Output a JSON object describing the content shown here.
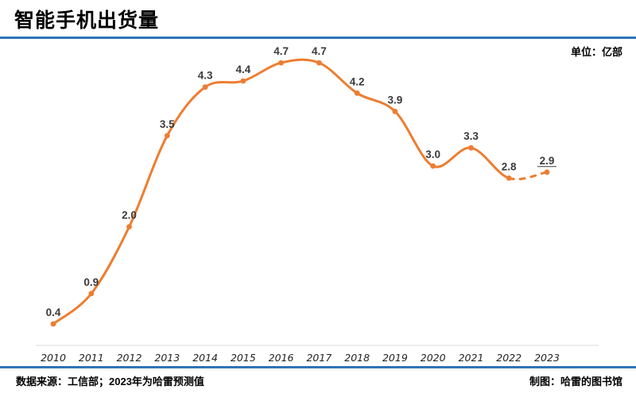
{
  "header": {
    "title": "智能手机出货量",
    "unit_label": "单位：亿部"
  },
  "footer": {
    "source": "数据来源：工信部；2023年为哈雷预测值",
    "credit": "制图：哈雷的图书馆"
  },
  "colors": {
    "line": "#ED7D31",
    "divider": "#2E75B6",
    "axis": "#D9D9D9",
    "data_label": "#3b3b3b"
  },
  "chart_data": {
    "type": "line",
    "title": "智能手机出货量",
    "unit": "亿部",
    "xlabel": "",
    "ylabel": "",
    "x": [
      "2010",
      "2011",
      "2012",
      "2013",
      "2014",
      "2015",
      "2016",
      "2017",
      "2018",
      "2019",
      "2020",
      "2021",
      "2022",
      "2023"
    ],
    "values": [
      0.4,
      0.9,
      2.0,
      3.5,
      4.3,
      4.4,
      4.7,
      4.7,
      4.2,
      3.9,
      3.0,
      3.3,
      2.8,
      2.9
    ],
    "labels": [
      "0.4",
      "0.9",
      "2.0",
      "3.5",
      "4.3",
      "4.4",
      "4.7",
      "4.7",
      "4.2",
      "3.9",
      "3.0",
      "3.3",
      "2.8",
      "2.9"
    ],
    "ylim": [
      0,
      5.2
    ],
    "grid": false,
    "legend": false,
    "smoothed": true,
    "markers": true,
    "dashed_segment": {
      "from": "2022",
      "to": "2023"
    },
    "forecast_point": {
      "x": "2023",
      "label_underlined": true
    }
  }
}
